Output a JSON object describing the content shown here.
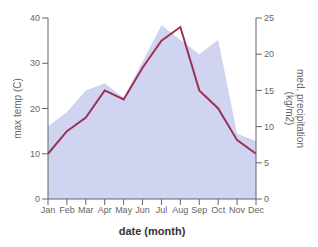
{
  "chart_data": {
    "type": "line",
    "categories": [
      "Jan",
      "Feb",
      "Mar",
      "Apr",
      "May",
      "Jun",
      "Jul",
      "Aug",
      "Sep",
      "Oct",
      "Nov",
      "Dec"
    ],
    "series": [
      {
        "type": "area",
        "color": "#b0b8e8",
        "axis": "y2",
        "values": [
          10,
          12,
          15,
          16,
          14,
          19,
          24,
          22,
          20,
          22,
          9,
          8
        ]
      },
      {
        "type": "line",
        "color": "#993355",
        "values": [
          10,
          15,
          18,
          24,
          22,
          29,
          35,
          38,
          24,
          20,
          13,
          10
        ]
      }
    ],
    "xlabel": "date (month)",
    "ylabel": "max temp (C)",
    "y2label": "med. precipitation\n(kg/m2)",
    "ylim": [
      0,
      40
    ],
    "yticks": [
      0,
      10,
      20,
      30,
      40
    ],
    "y2lim": [
      0,
      25
    ],
    "y2ticks": [
      0,
      5,
      10,
      15,
      20,
      25
    ],
    "grid": false
  }
}
